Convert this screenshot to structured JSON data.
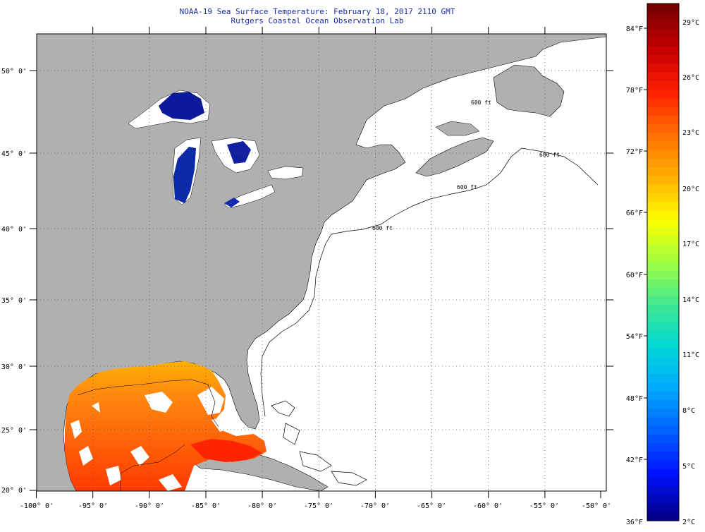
{
  "title": {
    "line1": "NOAA-19 Sea Surface Temperature:  February 18, 2017 2110 GMT",
    "line2": "Rutgers Coastal Ocean Observation Lab"
  },
  "map": {
    "lon_labels": [
      "-100° 0'",
      "-95° 0'",
      "-90° 0'",
      "-85° 0'",
      "-80° 0'",
      "-75° 0'",
      "-70° 0'",
      "-65° 0'",
      "-60° 0'",
      "-55° 0'",
      "-50° 0'"
    ],
    "lat_labels": [
      "50° 0'",
      "45° 0'",
      "40° 0'",
      "35° 0'",
      "30° 0'",
      "25° 0'",
      "20° 0'"
    ],
    "contour_labels": [
      "600 ft",
      "600 ft",
      "600 ft",
      "600 ft"
    ],
    "colors": {
      "land": "#b0b0b0",
      "ocean_nodata": "#ffffff",
      "lakes_cold": "#0a1a9a",
      "gulf_warm": "#ff5a10"
    }
  },
  "legend": {
    "fahrenheit": [
      "84°F",
      "78°F",
      "72°F",
      "66°F",
      "60°F",
      "54°F",
      "48°F",
      "42°F",
      "36°F"
    ],
    "celsius": [
      "29°C",
      "26°C",
      "23°C",
      "20°C",
      "17°C",
      "14°C",
      "11°C",
      "8°C",
      "5°C",
      "2°C"
    ],
    "scale_colors": [
      "#7a0000",
      "#c80000",
      "#ff2000",
      "#ff7000",
      "#ffb000",
      "#ffff00",
      "#a0ff40",
      "#40e890",
      "#00d8d8",
      "#00a8ff",
      "#0060ff",
      "#0010ff",
      "#00008a"
    ]
  }
}
